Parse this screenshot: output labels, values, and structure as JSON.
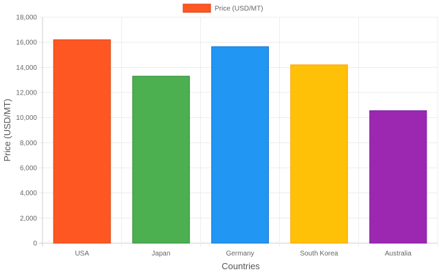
{
  "chart_data": {
    "type": "bar",
    "categories": [
      "USA",
      "Japan",
      "Germany",
      "South Korea",
      "Australia"
    ],
    "series": [
      {
        "name": "Price (USD/MT)",
        "values": [
          16200,
          13300,
          15650,
          14200,
          10550
        ],
        "colors": [
          "#FF5722",
          "#4CAF50",
          "#2196F3",
          "#FFC107",
          "#9C27B0"
        ],
        "border_colors": [
          "#D84315",
          "#388E3C",
          "#1976D2",
          "#FFA000",
          "#7B1FA2"
        ]
      }
    ],
    "xlabel": "Countries",
    "ylabel": "Price (USD/MT)",
    "ylim": [
      0,
      18000
    ],
    "yticks": [
      "0",
      "2,000",
      "4,000",
      "6,000",
      "8,000",
      "10,000",
      "12,000",
      "14,000",
      "16,000",
      "18,000"
    ],
    "legend": {
      "label": "Price (USD/MT)",
      "color": "#FF5722",
      "border_color": "#D84315",
      "position": "top"
    },
    "grid": true
  }
}
